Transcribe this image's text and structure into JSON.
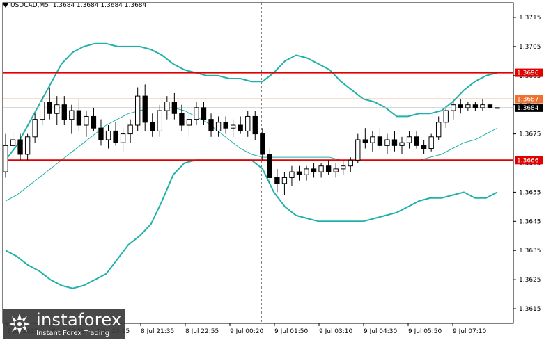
{
  "header": {
    "symbol": "USDCAD,M5",
    "ohlc": "1.3684 1.3684 1.3684 1.3684"
  },
  "watermark": {
    "brand": "instaforex",
    "tagline": "Instant Forex Trading"
  },
  "colors": {
    "level_line": "#e00000",
    "current_level": "#f07030",
    "band": "#20b2aa",
    "candle": "#000000",
    "price_label_bg": "#000000"
  },
  "chart_data": {
    "type": "candlestick",
    "symbol": "USDCAD",
    "timeframe": "M5",
    "ylim": [
      1.361,
      1.372
    ],
    "y_ticks": [
      "1.3715",
      "1.3705",
      "1.3695",
      "1.3685",
      "1.3675",
      "1.3665",
      "1.3655",
      "1.3645",
      "1.3635",
      "1.3625",
      "1.3615"
    ],
    "x_ticks": [
      "8 Jul 2025",
      "8 Jul 18:55",
      "8 Jul 20:15",
      "8 Jul 21:35",
      "8 Jul 22:55",
      "9 Jul 00:20",
      "9 Jul 01:50",
      "9 Jul 03:10",
      "9 Jul 04:30",
      "9 Jul 05:50",
      "9 Jul 07:10"
    ],
    "horizontal_levels": [
      {
        "value": 1.3696,
        "label": "1.3696",
        "color": "#e00000"
      },
      {
        "value": 1.3687,
        "label": "1.3687",
        "color": "#f07030"
      },
      {
        "value": 1.3666,
        "label": "1.3666",
        "color": "#e00000"
      }
    ],
    "current_price": {
      "value": 1.3684,
      "label": "1.3684"
    },
    "session_separator_index": 68,
    "bollinger_upper": [
      1.3666,
      1.3671,
      1.3678,
      1.3685,
      1.3692,
      1.3699,
      1.3703,
      1.3705,
      1.3706,
      1.3706,
      1.3705,
      1.3705,
      1.3705,
      1.3704,
      1.3702,
      1.3699,
      1.3697,
      1.3696,
      1.3695,
      1.3695,
      1.3694,
      1.3694,
      1.3693,
      1.3693,
      1.3696,
      1.37,
      1.3702,
      1.3701,
      1.3699,
      1.3697,
      1.3693,
      1.369,
      1.3687,
      1.3686,
      1.3684,
      1.3681,
      1.3681,
      1.3682,
      1.3682,
      1.3683,
      1.3686,
      1.369,
      1.3693,
      1.3695,
      1.3696
    ],
    "bollinger_middle": [
      1.3652,
      1.3654,
      1.3657,
      1.366,
      1.3663,
      1.3666,
      1.3669,
      1.3672,
      1.3675,
      1.3678,
      1.368,
      1.3682,
      1.3683,
      1.3684,
      1.3684,
      1.3684,
      1.3683,
      1.3681,
      1.3679,
      1.3676,
      1.3673,
      1.367,
      1.3668,
      1.3667,
      1.3667,
      1.3667,
      1.3667,
      1.3667,
      1.3667,
      1.3667,
      1.3666,
      1.3666,
      1.3666,
      1.3666,
      1.3666,
      1.3666,
      1.3666,
      1.3666,
      1.3667,
      1.3668,
      1.367,
      1.3672,
      1.3673,
      1.3675,
      1.3677
    ],
    "bollinger_lower": [
      1.3635,
      1.3633,
      1.363,
      1.3628,
      1.3625,
      1.3623,
      1.3622,
      1.3623,
      1.3625,
      1.3627,
      1.3632,
      1.3637,
      1.364,
      1.3644,
      1.3652,
      1.3661,
      1.3665,
      1.3666,
      1.3666,
      1.3666,
      1.3666,
      1.3666,
      1.3666,
      1.3663,
      1.3655,
      1.365,
      1.3647,
      1.3646,
      1.3645,
      1.3645,
      1.3645,
      1.3645,
      1.3645,
      1.3646,
      1.3647,
      1.3648,
      1.365,
      1.3652,
      1.3653,
      1.3653,
      1.3654,
      1.3655,
      1.3653,
      1.3653,
      1.3655
    ],
    "candles": [
      [
        1.3662,
        1.3675,
        1.366,
        1.3671
      ],
      [
        1.3671,
        1.3676,
        1.3667,
        1.3673
      ],
      [
        1.3673,
        1.3675,
        1.3666,
        1.3668
      ],
      [
        1.3668,
        1.3675,
        1.3666,
        1.3674
      ],
      [
        1.3674,
        1.3682,
        1.3672,
        1.368
      ],
      [
        1.368,
        1.3688,
        1.3678,
        1.3686
      ],
      [
        1.3686,
        1.3691,
        1.368,
        1.3682
      ],
      [
        1.3682,
        1.3688,
        1.3678,
        1.3685
      ],
      [
        1.3685,
        1.3688,
        1.3678,
        1.368
      ],
      [
        1.368,
        1.3685,
        1.3675,
        1.3683
      ],
      [
        1.3683,
        1.3687,
        1.3676,
        1.3678
      ],
      [
        1.3678,
        1.3683,
        1.3674,
        1.3681
      ],
      [
        1.3681,
        1.3684,
        1.3676,
        1.3677
      ],
      [
        1.3677,
        1.368,
        1.3671,
        1.3673
      ],
      [
        1.3673,
        1.3678,
        1.367,
        1.3676
      ],
      [
        1.3676,
        1.3679,
        1.3671,
        1.3672
      ],
      [
        1.3672,
        1.3677,
        1.3669,
        1.3675
      ],
      [
        1.3675,
        1.368,
        1.3672,
        1.3678
      ],
      [
        1.3678,
        1.3691,
        1.3676,
        1.3688
      ],
      [
        1.3688,
        1.3692,
        1.3676,
        1.3679
      ],
      [
        1.3679,
        1.3682,
        1.3674,
        1.3676
      ],
      [
        1.3676,
        1.3685,
        1.3674,
        1.3683
      ],
      [
        1.3683,
        1.3688,
        1.368,
        1.3686
      ],
      [
        1.3686,
        1.3689,
        1.368,
        1.3682
      ],
      [
        1.3682,
        1.3685,
        1.3676,
        1.3678
      ],
      [
        1.3678,
        1.3682,
        1.3674,
        1.368
      ],
      [
        1.368,
        1.3686,
        1.3678,
        1.3684
      ],
      [
        1.3684,
        1.3686,
        1.3678,
        1.368
      ],
      [
        1.368,
        1.3682,
        1.3674,
        1.3676
      ],
      [
        1.3676,
        1.3681,
        1.3674,
        1.3679
      ],
      [
        1.3679,
        1.3681,
        1.3675,
        1.3677
      ],
      [
        1.3677,
        1.368,
        1.3674,
        1.3678
      ],
      [
        1.3678,
        1.3681,
        1.3675,
        1.3676
      ],
      [
        1.3676,
        1.3683,
        1.3674,
        1.3681
      ],
      [
        1.3681,
        1.3683,
        1.3673,
        1.3675
      ],
      [
        1.3675,
        1.3677,
        1.3666,
        1.3668
      ],
      [
        1.3668,
        1.367,
        1.3658,
        1.366
      ],
      [
        1.366,
        1.3663,
        1.3655,
        1.3658
      ],
      [
        1.3658,
        1.3662,
        1.3654,
        1.366
      ],
      [
        1.366,
        1.3664,
        1.3657,
        1.3662
      ],
      [
        1.3662,
        1.3664,
        1.3659,
        1.3661
      ],
      [
        1.3661,
        1.3664,
        1.3659,
        1.3663
      ],
      [
        1.3663,
        1.3665,
        1.366,
        1.3662
      ],
      [
        1.3662,
        1.3665,
        1.366,
        1.3664
      ],
      [
        1.3664,
        1.3666,
        1.3661,
        1.3662
      ],
      [
        1.3662,
        1.3665,
        1.366,
        1.3663
      ],
      [
        1.3663,
        1.3666,
        1.3661,
        1.3664
      ],
      [
        1.3664,
        1.3667,
        1.3662,
        1.3666
      ],
      [
        1.3666,
        1.3675,
        1.3665,
        1.3673
      ],
      [
        1.3673,
        1.3677,
        1.367,
        1.3672
      ],
      [
        1.3672,
        1.3676,
        1.3669,
        1.3674
      ],
      [
        1.3674,
        1.3677,
        1.367,
        1.3671
      ],
      [
        1.3671,
        1.3675,
        1.3668,
        1.3673
      ],
      [
        1.3673,
        1.3676,
        1.3669,
        1.3671
      ],
      [
        1.3671,
        1.3674,
        1.3668,
        1.3672
      ],
      [
        1.3672,
        1.3676,
        1.367,
        1.3674
      ],
      [
        1.3674,
        1.3676,
        1.367,
        1.3671
      ],
      [
        1.3671,
        1.3673,
        1.3668,
        1.367
      ],
      [
        1.367,
        1.3675,
        1.3669,
        1.3674
      ],
      [
        1.3674,
        1.3681,
        1.3673,
        1.3679
      ],
      [
        1.3679,
        1.3684,
        1.3677,
        1.3683
      ],
      [
        1.3683,
        1.3686,
        1.368,
        1.3685
      ],
      [
        1.3685,
        1.3687,
        1.3682,
        1.3684
      ],
      [
        1.3684,
        1.3686,
        1.3683,
        1.3685
      ],
      [
        1.3685,
        1.3686,
        1.3683,
        1.3684
      ],
      [
        1.3684,
        1.3687,
        1.3683,
        1.3685
      ],
      [
        1.3685,
        1.3686,
        1.3683,
        1.3684
      ],
      [
        1.3684,
        1.3684,
        1.3684,
        1.3684
      ]
    ]
  }
}
